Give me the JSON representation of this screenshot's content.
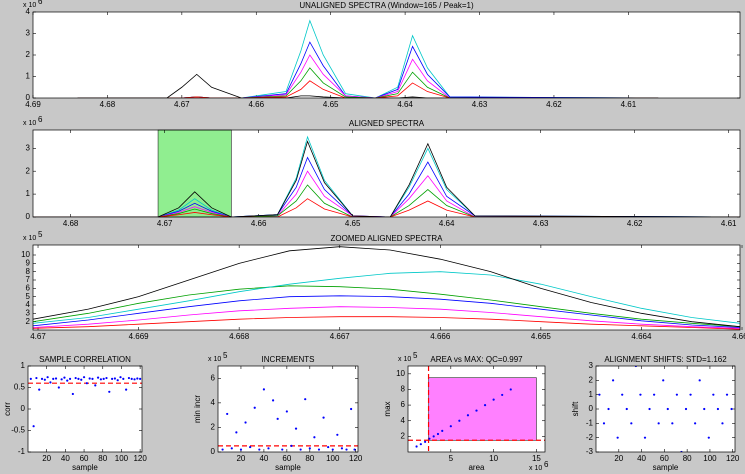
{
  "chart_data": [
    {
      "type": "line",
      "title": "UNALIGNED SPECTRA (Window=165 / Peak=1)",
      "xreverse": true,
      "yexp": {
        "base": "x 10",
        "power": "6"
      },
      "x": [
        4.684,
        4.672,
        4.67,
        4.668,
        4.666,
        4.662,
        4.656,
        4.654,
        4.6528,
        4.651,
        4.648,
        4.644,
        4.641,
        4.639,
        4.637,
        4.634,
        4.606
      ],
      "xlim": [
        4.69,
        4.595
      ],
      "xticks": [
        4.69,
        4.68,
        4.67,
        4.66,
        4.65,
        4.64,
        4.63,
        4.62,
        4.61
      ],
      "ylim": [
        0,
        4
      ],
      "yticks": [
        0,
        1,
        2,
        3,
        4
      ],
      "series": [
        {
          "color": "#00c8c8",
          "values": [
            0,
            0,
            0,
            0.05,
            0,
            0,
            0.3,
            2.2,
            3.6,
            2.0,
            0.2,
            0,
            0.5,
            2.9,
            1.4,
            0.05,
            0
          ]
        },
        {
          "color": "#0000ff",
          "values": [
            0,
            0,
            0,
            0.05,
            0,
            0,
            0.2,
            1.6,
            2.6,
            1.5,
            0.1,
            0,
            0.4,
            2.4,
            1.1,
            0.05,
            0
          ]
        },
        {
          "color": "#ff00ff",
          "values": [
            0,
            0,
            0,
            0.05,
            0,
            0,
            0.15,
            1.2,
            2.0,
            1.1,
            0.1,
            0,
            0.3,
            1.8,
            0.8,
            0,
            0
          ]
        },
        {
          "color": "#00a000",
          "values": [
            0,
            0,
            0,
            0.05,
            0,
            0,
            0.1,
            0.8,
            1.4,
            0.7,
            0.05,
            0,
            0.2,
            1.2,
            0.5,
            0,
            0
          ]
        },
        {
          "color": "#ff0000",
          "values": [
            0,
            0,
            0,
            0.05,
            0,
            0,
            0.05,
            0.4,
            0.8,
            0.4,
            0,
            0,
            0.1,
            0.7,
            0.3,
            0,
            0
          ]
        },
        {
          "color": "#000000",
          "values": [
            0,
            0,
            0.5,
            1.1,
            0.5,
            0,
            0,
            0.1,
            0.1,
            0.05,
            0,
            0,
            0,
            0.05,
            0,
            0,
            0
          ]
        }
      ]
    },
    {
      "type": "line",
      "title": "ALIGNED SPECTRA",
      "xreverse": true,
      "yexp": {
        "base": "x 10",
        "power": "6"
      },
      "highlight": {
        "x": [
          4.6707,
          4.6629
        ],
        "color": "#90ee90"
      },
      "x": [
        4.684,
        4.6707,
        4.6685,
        4.6668,
        4.665,
        4.6629,
        4.658,
        4.656,
        4.6548,
        4.653,
        4.65,
        4.646,
        4.644,
        4.642,
        4.64,
        4.637,
        4.6088
      ],
      "xlim": [
        4.684,
        4.6088
      ],
      "xticks": [
        4.68,
        4.67,
        4.66,
        4.65,
        4.64,
        4.63,
        4.62,
        4.61
      ],
      "ylim": [
        0,
        3.8
      ],
      "yticks": [
        0,
        1,
        2,
        3
      ],
      "series": [
        {
          "color": "#00c8c8",
          "values": [
            0,
            0,
            0.3,
            0.8,
            0.3,
            0,
            0.1,
            1.7,
            3.5,
            1.6,
            0.05,
            0,
            1.3,
            3.0,
            1.2,
            0.05,
            0
          ]
        },
        {
          "color": "#0000ff",
          "values": [
            0,
            0,
            0.25,
            0.6,
            0.25,
            0,
            0.1,
            1.3,
            2.6,
            1.2,
            0.05,
            0,
            1.0,
            2.4,
            0.9,
            0.05,
            0
          ]
        },
        {
          "color": "#ff00ff",
          "values": [
            0,
            0,
            0.2,
            0.45,
            0.2,
            0,
            0.05,
            1.0,
            2.0,
            0.9,
            0.05,
            0,
            0.8,
            1.8,
            0.7,
            0,
            0
          ]
        },
        {
          "color": "#00a000",
          "values": [
            0,
            0,
            0.15,
            0.35,
            0.15,
            0,
            0.05,
            0.7,
            1.4,
            0.6,
            0,
            0,
            0.5,
            1.2,
            0.5,
            0,
            0
          ]
        },
        {
          "color": "#ff0000",
          "values": [
            0,
            0,
            0.1,
            0.2,
            0.1,
            0,
            0,
            0.4,
            0.8,
            0.35,
            0,
            0,
            0.3,
            0.7,
            0.3,
            0,
            0
          ]
        },
        {
          "color": "#000000",
          "values": [
            0,
            0,
            0.4,
            1.1,
            0.4,
            0,
            0.1,
            1.6,
            3.3,
            1.5,
            0.05,
            0,
            1.4,
            3.2,
            1.3,
            0.05,
            0
          ]
        }
      ]
    },
    {
      "type": "line",
      "title": "ZOOMED ALIGNED SPECTRA",
      "xreverse": true,
      "yexp": {
        "base": "x 10",
        "power": "5"
      },
      "x": [
        4.67005,
        4.6695,
        4.669,
        4.6685,
        4.668,
        4.6675,
        4.667,
        4.6665,
        4.666,
        4.6655,
        4.665,
        4.6645,
        4.664,
        4.6635,
        4.66302
      ],
      "xlim": [
        4.67005,
        4.66302
      ],
      "xticks": [
        4.67,
        4.669,
        4.668,
        4.667,
        4.666,
        4.665,
        4.664,
        4.663
      ],
      "ylim": [
        1,
        11.2
      ],
      "yticks": [
        2,
        3,
        4,
        5,
        6,
        7,
        8,
        9,
        10
      ],
      "series": [
        {
          "color": "#ff0000",
          "values": [
            1.2,
            1.4,
            1.7,
            2,
            2.3,
            2.5,
            2.6,
            2.6,
            2.5,
            2.3,
            2,
            1.7,
            1.5,
            1.3,
            1.1
          ]
        },
        {
          "color": "#ff00ff",
          "values": [
            1.3,
            1.7,
            2.2,
            2.8,
            3.3,
            3.6,
            3.8,
            3.7,
            3.5,
            3.1,
            2.6,
            2.1,
            1.7,
            1.4,
            1.2
          ]
        },
        {
          "color": "#0000ff",
          "values": [
            1.5,
            2.2,
            3,
            3.8,
            4.5,
            5,
            5.1,
            5,
            4.7,
            4.2,
            3.5,
            2.8,
            2.1,
            1.6,
            1.3
          ]
        },
        {
          "color": "#00a000",
          "values": [
            2,
            3,
            4.2,
            5.2,
            5.9,
            6.3,
            6.2,
            5.9,
            5.3,
            4.6,
            3.8,
            3,
            2.3,
            1.8,
            1.4
          ]
        },
        {
          "color": "#00c8c8",
          "values": [
            1.8,
            2.5,
            3.5,
            4.5,
            5.6,
            6.5,
            7.2,
            7.8,
            8,
            7.6,
            6.5,
            5,
            3.6,
            2.5,
            1.8
          ]
        },
        {
          "color": "#000000",
          "values": [
            2.3,
            3.5,
            5,
            7,
            9,
            10.5,
            11,
            10.6,
            9.5,
            8,
            6,
            4.3,
            3,
            2,
            1.4
          ]
        }
      ]
    },
    {
      "type": "scatter",
      "title": "SAMPLE CORRELATION",
      "xlabel": "sample",
      "ylabel": "corr",
      "xlim": [
        0,
        122
      ],
      "xticks": [
        20,
        40,
        60,
        80,
        100,
        120
      ],
      "ylim": [
        -1,
        1
      ],
      "yticks": [
        -1,
        -0.5,
        0,
        0.5,
        1
      ],
      "hlines": [
        0.6
      ],
      "line_color": "#ff0000",
      "series": [
        {
          "color": "#0000ff",
          "x": [
            3,
            6,
            9,
            12,
            15,
            18,
            21,
            24,
            27,
            30,
            33,
            36,
            39,
            42,
            45,
            48,
            51,
            54,
            57,
            60,
            63,
            66,
            69,
            72,
            75,
            78,
            81,
            84,
            87,
            90,
            93,
            96,
            99,
            102,
            105,
            108,
            111,
            114,
            117,
            120
          ],
          "values": [
            0.7,
            -0.4,
            0.72,
            0.45,
            0.7,
            0.68,
            0.74,
            0.62,
            0.7,
            0.71,
            0.5,
            0.69,
            0.73,
            0.66,
            0.7,
            0.35,
            0.72,
            0.7,
            0.68,
            0.74,
            0.6,
            0.71,
            0.7,
            0.55,
            0.73,
            0.69,
            0.7,
            0.72,
            0.4,
            0.7,
            0.71,
            0.67,
            0.74,
            0.7,
            0.45,
            0.72,
            0.7,
            0.69,
            0.71,
            0.7
          ]
        }
      ]
    },
    {
      "type": "scatter",
      "title": "INCREMENTS",
      "xlabel": "sample",
      "ylabel": "min incr",
      "yexp": {
        "base": "x 10",
        "power": "5"
      },
      "xlim": [
        0,
        122
      ],
      "xticks": [
        20,
        40,
        60,
        80,
        100,
        120
      ],
      "ylim": [
        0,
        7
      ],
      "yticks": [
        0,
        2,
        4,
        6
      ],
      "hlines": [
        0.5
      ],
      "line_color": "#ff0000",
      "series": [
        {
          "color": "#0000ff",
          "x": [
            4,
            8,
            12,
            16,
            20,
            24,
            28,
            32,
            36,
            40,
            44,
            48,
            52,
            56,
            60,
            64,
            68,
            72,
            76,
            80,
            84,
            88,
            92,
            96,
            100,
            104,
            108,
            112,
            116,
            119
          ],
          "values": [
            0.2,
            3.1,
            0.3,
            1.6,
            0.2,
            2.4,
            0.4,
            3.6,
            0.2,
            5.1,
            0.3,
            4.2,
            2.7,
            0.2,
            3.3,
            0.5,
            1.9,
            0.2,
            4.3,
            0.3,
            1.2,
            0.2,
            2.8,
            0.4,
            0.2,
            1.4,
            0.3,
            0.2,
            3.5,
            0.2
          ]
        }
      ]
    },
    {
      "type": "scatter",
      "title": "AREA vs MAX: QC=0.997",
      "xlabel": "area",
      "ylabel": "max",
      "yexp": {
        "base": "x 10",
        "power": "5"
      },
      "xexp": {
        "base": "x 10",
        "power": "6"
      },
      "highlight": {
        "x": [
          2.4,
          15
        ],
        "y": [
          1.5,
          9.5
        ],
        "color": "#ff80ff"
      },
      "vlines": [
        2.4
      ],
      "hlines": [
        1.5
      ],
      "line_color": "#ff0000",
      "xlim": [
        0,
        16
      ],
      "xticks": [
        5,
        10,
        15
      ],
      "ylim": [
        0,
        11
      ],
      "yticks": [
        2,
        4,
        6,
        8,
        10
      ],
      "series": [
        {
          "color": "#0000ff",
          "x": [
            1,
            1.5,
            2,
            2.5,
            3,
            3.5,
            4,
            5,
            6,
            7,
            8,
            9,
            10,
            11,
            12
          ],
          "values": [
            0.7,
            1,
            1.3,
            1.7,
            2,
            2.3,
            2.7,
            3.3,
            4,
            4.7,
            5.3,
            6,
            6.7,
            7.3,
            8
          ]
        }
      ]
    },
    {
      "type": "scatter",
      "title": "ALIGNMENT SHIFTS: STD=1.162",
      "xlabel": "sample",
      "ylabel": "shift",
      "xlim": [
        0,
        122
      ],
      "xticks": [
        20,
        40,
        60,
        80,
        100,
        120
      ],
      "ylim": [
        -3,
        3
      ],
      "yticks": [
        -3,
        -2,
        -1,
        0,
        1,
        2,
        3
      ],
      "series": [
        {
          "color": "#0000ff",
          "x": [
            3,
            7,
            11,
            15,
            19,
            23,
            27,
            31,
            35,
            39,
            43,
            47,
            51,
            55,
            59,
            63,
            67,
            71,
            75,
            79,
            83,
            87,
            91,
            95,
            99,
            103,
            107,
            111,
            115,
            119
          ],
          "values": [
            1,
            -1,
            0,
            2,
            -2,
            1,
            0,
            -1,
            3,
            1,
            -2,
            0,
            1,
            -1,
            2,
            0,
            -1,
            1,
            -3,
            0,
            1,
            -1,
            2,
            0,
            -2,
            1,
            0,
            -1,
            1,
            0
          ]
        }
      ]
    }
  ]
}
